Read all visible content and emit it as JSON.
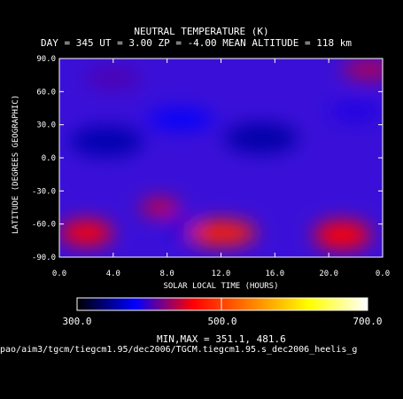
{
  "chart_data": {
    "type": "heatmap",
    "title": "NEUTRAL TEMPERATURE (K)",
    "subtitle": "DAY = 345   UT =   3.00   ZP =   -4.00   MEAN ALTITUDE = 118 km",
    "xlabel": "SOLAR LOCAL TIME (HOURS)",
    "ylabel": "LATITUDE (DEGREES GEOGRAPHIC)",
    "xlim": [
      0,
      24
    ],
    "ylim": [
      -90,
      90
    ],
    "x_ticks": [
      "0.0",
      "4.0",
      "8.0",
      "12.0",
      "16.0",
      "20.0",
      "0.0"
    ],
    "y_ticks": [
      "90.0",
      "60.0",
      "30.0",
      "0.0",
      "-30.0",
      "-60.0",
      "-90.0"
    ],
    "colorbar": {
      "range": [
        300,
        700
      ],
      "ticks": [
        "300.0",
        "500.0",
        "700.0"
      ],
      "colors": [
        "#000000",
        "#0000ff",
        "#ff0000",
        "#ff8000",
        "#ffff00",
        "#ffffff"
      ]
    },
    "min_max_text": "MIN,MAX =        351.1,     481.6",
    "min": 351.1,
    "max": 481.6,
    "features": [
      {
        "lt": 3.5,
        "lat": 15,
        "value": 355
      },
      {
        "lt": 15.0,
        "lat": 18,
        "value": 352
      },
      {
        "lt": 9.0,
        "lat": 35,
        "value": 380
      },
      {
        "lt": 22.0,
        "lat": 42,
        "value": 388
      },
      {
        "lt": 23.0,
        "lat": 80,
        "value": 440
      },
      {
        "lt": 4.0,
        "lat": 72,
        "value": 405
      },
      {
        "lt": 12.0,
        "lat": -68,
        "value": 481
      },
      {
        "lt": 2.0,
        "lat": -68,
        "value": 462
      },
      {
        "lt": 21.0,
        "lat": -70,
        "value": 460
      },
      {
        "lt": 7.5,
        "lat": -45,
        "value": 450
      },
      {
        "lt": 9.0,
        "lat": -62,
        "value": 365
      }
    ]
  },
  "footer": {
    "filepath": "pao/aim3/tgcm/tiegcm1.95/dec2006/TGCM.tiegcm1.95.s_dec2006_heelis_g"
  }
}
